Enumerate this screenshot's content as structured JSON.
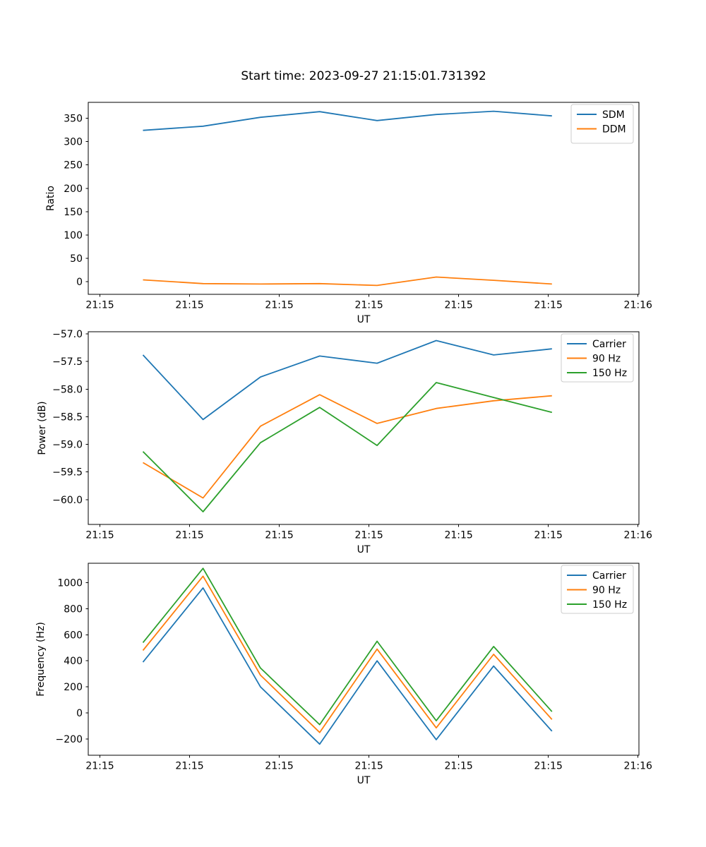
{
  "figure": {
    "background": "#ffffff",
    "text_color": "#000000",
    "axes_edge_color": "#000000",
    "legend_edge_color": "#cccccc",
    "legend_face_color": "#ffffff"
  },
  "chart_data": [
    {
      "type": "line",
      "title": "Start time: 2023-09-27 21:15:01.731392",
      "xlabel": "UT",
      "ylabel": "Ratio",
      "grid": false,
      "legend_position": "upper right",
      "x_seconds_after_21_15": [
        4.8,
        11.5,
        17.9,
        24.5,
        30.9,
        37.5,
        43.9,
        50.4
      ],
      "xlim_seconds": [
        -1.3,
        60.1
      ],
      "ylim": [
        -27,
        384
      ],
      "xticks": [
        {
          "v": 0,
          "label": "21:15"
        },
        {
          "v": 10,
          "label": "21:15"
        },
        {
          "v": 20,
          "label": "21:15"
        },
        {
          "v": 30,
          "label": "21:15"
        },
        {
          "v": 40,
          "label": "21:15"
        },
        {
          "v": 50,
          "label": "21:15"
        },
        {
          "v": 60,
          "label": "21:16"
        }
      ],
      "yticks": [
        {
          "v": 0,
          "label": "0"
        },
        {
          "v": 50,
          "label": "50"
        },
        {
          "v": 100,
          "label": "100"
        },
        {
          "v": 150,
          "label": "150"
        },
        {
          "v": 200,
          "label": "200"
        },
        {
          "v": 250,
          "label": "250"
        },
        {
          "v": 300,
          "label": "300"
        },
        {
          "v": 350,
          "label": "350"
        }
      ],
      "series": [
        {
          "name": "SDM",
          "color": "#1f77b4",
          "values": [
            324,
            333,
            352,
            364,
            345,
            358,
            365,
            355
          ]
        },
        {
          "name": "DDM",
          "color": "#ff7f0e",
          "values": [
            4,
            -4,
            -5,
            -4,
            -8,
            10,
            3,
            -5
          ]
        }
      ]
    },
    {
      "type": "line",
      "title": "",
      "xlabel": "UT",
      "ylabel": "Power (dB)",
      "grid": false,
      "legend_position": "upper right",
      "x_seconds_after_21_15": [
        4.8,
        11.5,
        17.9,
        24.5,
        30.9,
        37.5,
        43.9,
        50.4
      ],
      "xlim_seconds": [
        -1.3,
        60.1
      ],
      "ylim": [
        -60.45,
        -56.96
      ],
      "xticks": [
        {
          "v": 0,
          "label": "21:15"
        },
        {
          "v": 10,
          "label": "21:15"
        },
        {
          "v": 20,
          "label": "21:15"
        },
        {
          "v": 30,
          "label": "21:15"
        },
        {
          "v": 40,
          "label": "21:15"
        },
        {
          "v": 50,
          "label": "21:15"
        },
        {
          "v": 60,
          "label": "21:16"
        }
      ],
      "yticks": [
        {
          "v": -57.0,
          "label": "−57.0"
        },
        {
          "v": -57.5,
          "label": "−57.5"
        },
        {
          "v": -58.0,
          "label": "−58.0"
        },
        {
          "v": -58.5,
          "label": "−58.5"
        },
        {
          "v": -59.0,
          "label": "−59.0"
        },
        {
          "v": -59.5,
          "label": "−59.5"
        },
        {
          "v": -60.0,
          "label": "−60.0"
        }
      ],
      "series": [
        {
          "name": "Carrier",
          "color": "#1f77b4",
          "values": [
            -57.38,
            -58.55,
            -57.78,
            -57.4,
            -57.53,
            -57.12,
            -57.38,
            -57.27
          ]
        },
        {
          "name": "90 Hz",
          "color": "#ff7f0e",
          "values": [
            -59.33,
            -59.97,
            -58.67,
            -58.1,
            -58.62,
            -58.35,
            -58.21,
            -58.12
          ]
        },
        {
          "name": "150 Hz",
          "color": "#2ca02c",
          "values": [
            -59.13,
            -60.22,
            -58.97,
            -58.33,
            -59.02,
            -57.88,
            -58.15,
            -58.42
          ]
        }
      ]
    },
    {
      "type": "line",
      "title": "",
      "xlabel": "UT",
      "ylabel": "Frequency (Hz)",
      "grid": false,
      "legend_position": "upper right",
      "x_seconds_after_21_15": [
        4.8,
        11.5,
        17.9,
        24.5,
        30.9,
        37.5,
        43.9,
        50.4
      ],
      "xlim_seconds": [
        -1.3,
        60.1
      ],
      "ylim": [
        -325,
        1149
      ],
      "xticks": [
        {
          "v": 0,
          "label": "21:15"
        },
        {
          "v": 10,
          "label": "21:15"
        },
        {
          "v": 20,
          "label": "21:15"
        },
        {
          "v": 30,
          "label": "21:15"
        },
        {
          "v": 40,
          "label": "21:15"
        },
        {
          "v": 50,
          "label": "21:15"
        },
        {
          "v": 60,
          "label": "21:16"
        }
      ],
      "yticks": [
        {
          "v": -200,
          "label": "−200"
        },
        {
          "v": 0,
          "label": "0"
        },
        {
          "v": 200,
          "label": "200"
        },
        {
          "v": 400,
          "label": "400"
        },
        {
          "v": 600,
          "label": "600"
        },
        {
          "v": 800,
          "label": "800"
        },
        {
          "v": 1000,
          "label": "1000"
        }
      ],
      "series": [
        {
          "name": "Carrier",
          "color": "#1f77b4",
          "values": [
            390,
            960,
            200,
            -240,
            400,
            -205,
            360,
            -140
          ]
        },
        {
          "name": "90 Hz",
          "color": "#ff7f0e",
          "values": [
            480,
            1050,
            290,
            -150,
            490,
            -115,
            450,
            -50
          ]
        },
        {
          "name": "150 Hz",
          "color": "#2ca02c",
          "values": [
            540,
            1110,
            345,
            -90,
            550,
            -60,
            510,
            10
          ]
        }
      ]
    }
  ]
}
